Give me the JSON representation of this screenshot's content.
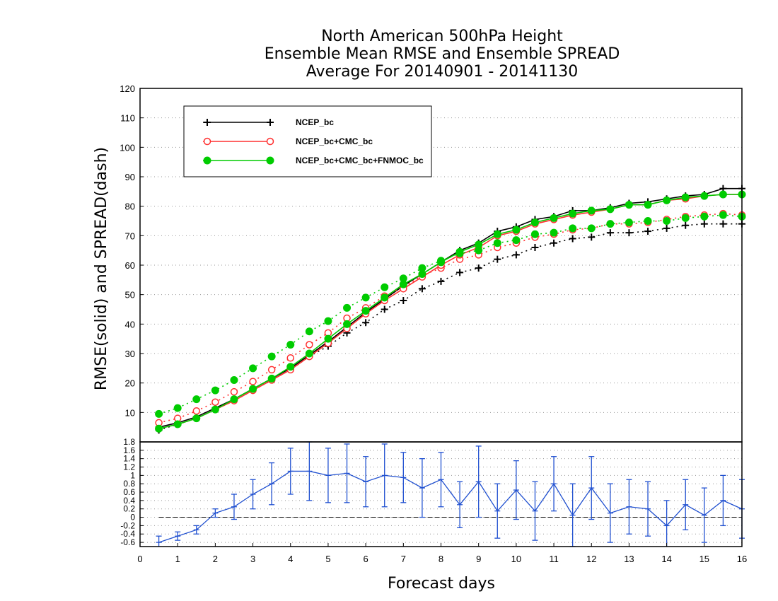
{
  "chart_data": [
    {
      "type": "line",
      "title_lines": [
        "North American 500hPa Height",
        "Ensemble Mean RMSE and Ensemble SPREAD",
        "Average For 20140901 - 20141130"
      ],
      "ylabel": "RMSE(solid) and SPREAD(dash)",
      "xlabel": "Forecast days",
      "xlim": [
        0,
        16
      ],
      "ylim": [
        0,
        120
      ],
      "x_ticks": [
        "0",
        "1",
        "2",
        "3",
        "4",
        "5",
        "6",
        "7",
        "8",
        "9",
        "10",
        "11",
        "12",
        "13",
        "14",
        "15",
        "16"
      ],
      "y_ticks": [
        "10",
        "20",
        "30",
        "40",
        "50",
        "60",
        "70",
        "80",
        "90",
        "100",
        "110",
        "120"
      ],
      "grid": "horizontal dotted",
      "legend_position": "top-left",
      "x": [
        0.5,
        1,
        1.5,
        2,
        2.5,
        3,
        3.5,
        4,
        4.5,
        5,
        5.5,
        6,
        6.5,
        7,
        7.5,
        8,
        8.5,
        9,
        9.5,
        10,
        10.5,
        11,
        11.5,
        12,
        12.5,
        13,
        13.5,
        14,
        14.5,
        15,
        15.5,
        16
      ],
      "series": [
        {
          "name": "NCEP_bc",
          "color": "#000000",
          "marker": "plus",
          "rmse": [
            5,
            6.5,
            8.5,
            11.5,
            14.5,
            18,
            21.5,
            25,
            29.5,
            34,
            39,
            44,
            48.5,
            53,
            57,
            61,
            65,
            67.5,
            71.5,
            73,
            75.5,
            76.5,
            78.5,
            78.5,
            79.5,
            81,
            81.5,
            82.5,
            83.5,
            84,
            86,
            86
          ],
          "spread": [
            4,
            6,
            8,
            11,
            14,
            17.5,
            21,
            24.5,
            29,
            32.5,
            37,
            40.5,
            45,
            48,
            52,
            54.5,
            57.5,
            59,
            62,
            63.5,
            66,
            67.5,
            69,
            69.5,
            71,
            71,
            71.5,
            72.5,
            73.5,
            74,
            74,
            74
          ]
        },
        {
          "name": "NCEP_bc+CMC_bc",
          "color": "#ff3030",
          "marker": "open-circle",
          "rmse": [
            4.5,
            6,
            8,
            11,
            14,
            17.5,
            21,
            24.5,
            29,
            33.5,
            38.5,
            43.5,
            48,
            52,
            56,
            60,
            63.5,
            66,
            70,
            71.5,
            74,
            75.5,
            77,
            78,
            79,
            80.5,
            80.5,
            82,
            82.5,
            83.5,
            84,
            84
          ],
          "spread": [
            6.5,
            8,
            10.5,
            13.5,
            17,
            20.5,
            24.5,
            28.5,
            33,
            37,
            42,
            45.5,
            49.5,
            52.5,
            56.5,
            59,
            62,
            63.5,
            66,
            67.5,
            69.5,
            70.5,
            72,
            72.5,
            74,
            74,
            74.5,
            75.5,
            76.5,
            77,
            77.5,
            77
          ]
        },
        {
          "name": "NCEP_bc+CMC_bc+FNMOC_bc",
          "color": "#00cc00",
          "marker": "filled-circle",
          "rmse": [
            4.5,
            6,
            8,
            11,
            14.5,
            18,
            21.5,
            25.5,
            30,
            35,
            40,
            44.5,
            49,
            53.5,
            57,
            61,
            64.5,
            67,
            70.5,
            72,
            74.5,
            76,
            77.5,
            78.5,
            79,
            80.5,
            80.5,
            82,
            83,
            83.5,
            84,
            84
          ],
          "spread": [
            9.5,
            11.5,
            14.5,
            17.5,
            21,
            25,
            29,
            33,
            37.5,
            41,
            45.5,
            49,
            52.5,
            55.5,
            59,
            61.5,
            64,
            65,
            67.5,
            68.5,
            70.5,
            71,
            72.5,
            72.5,
            74,
            74.5,
            75,
            75,
            76,
            76.5,
            77,
            76.5
          ]
        }
      ]
    },
    {
      "type": "line",
      "ylim": [
        -0.7,
        1.8
      ],
      "y_ticks": [
        "-0.6",
        "-0.4",
        "-0.2",
        "0",
        "0.2",
        "0.4",
        "0.6",
        "0.8",
        "1",
        "1.2",
        "1.4",
        "1.6",
        "1.8"
      ],
      "zero_line": true,
      "color": "#2050d0",
      "x": [
        0.5,
        1,
        1.5,
        2,
        2.5,
        3,
        3.5,
        4,
        4.5,
        5,
        5.5,
        6,
        6.5,
        7,
        7.5,
        8,
        8.5,
        9,
        9.5,
        10,
        10.5,
        11,
        11.5,
        12,
        12.5,
        13,
        13.5,
        14,
        14.5,
        15,
        15.5,
        16
      ],
      "values": [
        -0.6,
        -0.45,
        -0.3,
        0.1,
        0.25,
        0.55,
        0.8,
        1.1,
        1.1,
        1.0,
        1.05,
        0.85,
        1.0,
        0.95,
        0.7,
        0.9,
        0.3,
        0.85,
        0.15,
        0.65,
        0.15,
        0.8,
        0.05,
        0.7,
        0.1,
        0.25,
        0.2,
        -0.2,
        0.3,
        0.05,
        0.4,
        0.2
      ],
      "error": [
        0.15,
        0.1,
        0.1,
        0.1,
        0.3,
        0.35,
        0.5,
        0.55,
        0.7,
        0.65,
        0.7,
        0.6,
        0.75,
        0.6,
        0.7,
        0.65,
        0.55,
        0.85,
        0.65,
        0.7,
        0.7,
        0.65,
        0.75,
        0.75,
        0.7,
        0.65,
        0.65,
        0.6,
        0.6,
        0.65,
        0.6,
        0.7
      ]
    }
  ]
}
